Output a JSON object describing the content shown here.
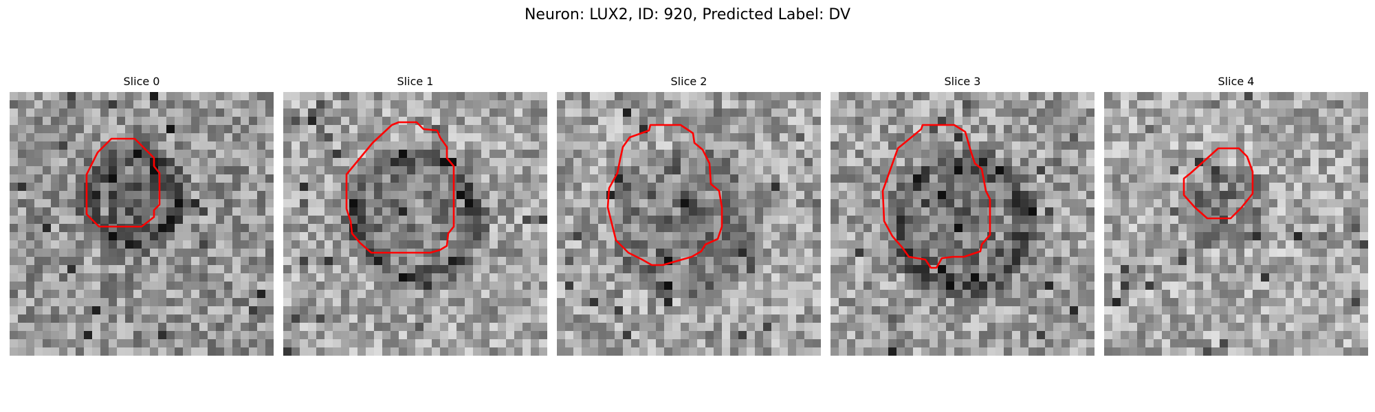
{
  "figure": {
    "title": "Neuron: LUX2, ID: 920, Predicted Label: DV"
  },
  "slices": [
    {
      "label": "Slice 0",
      "contour_color": "#ff0000"
    },
    {
      "label": "Slice 1",
      "contour_color": "#ff0000"
    },
    {
      "label": "Slice 2",
      "contour_color": "#ff0000"
    },
    {
      "label": "Slice 3",
      "contour_color": "#ff0000"
    },
    {
      "label": "Slice 4",
      "contour_color": "#ff0000"
    }
  ]
}
